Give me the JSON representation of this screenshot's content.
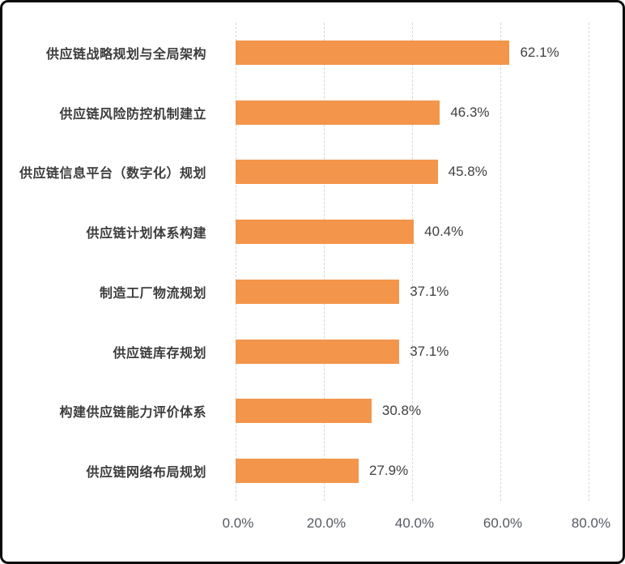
{
  "chart_data": {
    "type": "bar",
    "orientation": "horizontal",
    "title": "",
    "xlabel": "",
    "ylabel": "",
    "xlim": [
      0,
      80
    ],
    "grid": "vertical dashed gridlines every 20%",
    "legend": "none",
    "categories": [
      "供应链战略规划与全局架构",
      "供应链风险防控机制建立",
      "供应链信息平台（数字化）规划",
      "供应链计划体系构建",
      "制造工厂物流规划",
      "供应链库存规划",
      "构建供应链能力评价体系",
      "供应链网络布局规划"
    ],
    "values": [
      62.1,
      46.3,
      45.8,
      40.4,
      37.1,
      37.1,
      30.8,
      27.9
    ],
    "value_labels": [
      "62.1%",
      "46.3%",
      "45.8%",
      "40.4%",
      "37.1%",
      "37.1%",
      "30.8%",
      "27.9%"
    ],
    "x_ticks": [
      "0.0%",
      "20.0%",
      "40.0%",
      "60.0%",
      "80.0%"
    ]
  },
  "colors": {
    "bar": "#f3954a",
    "gridline": "#d6d6d6",
    "category_label": "#3d3d3d",
    "value_label": "#404040",
    "axis_label": "#555961",
    "frame_border": "#0c0c0c",
    "background": "#ffffff"
  }
}
